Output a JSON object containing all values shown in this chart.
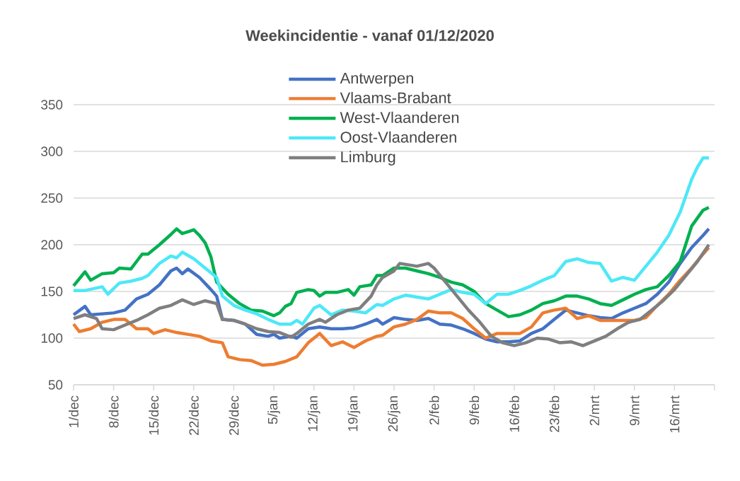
{
  "chart_data": {
    "type": "line",
    "title": "Weekincidentie - vanaf 01/12/2020",
    "xlim": [
      "2020-12-01",
      "2021-03-23"
    ],
    "ylim": [
      50,
      350
    ],
    "yticks": [
      50,
      100,
      150,
      200,
      250,
      300,
      350
    ],
    "xticks": [
      {
        "value": "2020-12-01",
        "label": "1/dec"
      },
      {
        "value": "2020-12-08",
        "label": "8/dec"
      },
      {
        "value": "2020-12-15",
        "label": "15/dec"
      },
      {
        "value": "2020-12-22",
        "label": "22/dec"
      },
      {
        "value": "2020-12-29",
        "label": "29/dec"
      },
      {
        "value": "2021-01-05",
        "label": "5/jan"
      },
      {
        "value": "2021-01-12",
        "label": "12/jan"
      },
      {
        "value": "2021-01-19",
        "label": "19/jan"
      },
      {
        "value": "2021-01-26",
        "label": "26/jan"
      },
      {
        "value": "2021-02-02",
        "label": "2/feb"
      },
      {
        "value": "2021-02-09",
        "label": "9/feb"
      },
      {
        "value": "2021-02-16",
        "label": "16/feb"
      },
      {
        "value": "2021-02-23",
        "label": "23/feb"
      },
      {
        "value": "2021-03-02",
        "label": "2/mrt"
      },
      {
        "value": "2021-03-09",
        "label": "9/mrt"
      },
      {
        "value": "2021-03-16",
        "label": "16/mrt"
      },
      {
        "value": "2021-03-23",
        "label": null
      }
    ],
    "grid": "y",
    "legend": "top",
    "marker": "none",
    "line_style": "solid",
    "series": [
      {
        "name": "Antwerpen",
        "color": "#4472c4",
        "x": [
          "2020-12-01",
          "2020-12-03",
          "2020-12-04",
          "2020-12-06",
          "2020-12-08",
          "2020-12-10",
          "2020-12-12",
          "2020-12-14",
          "2020-12-16",
          "2020-12-18",
          "2020-12-19",
          "2020-12-20",
          "2020-12-21",
          "2020-12-23",
          "2020-12-25",
          "2020-12-26",
          "2020-12-27",
          "2020-12-29",
          "2020-12-31",
          "2021-01-02",
          "2021-01-04",
          "2021-01-05",
          "2021-01-06",
          "2021-01-08",
          "2021-01-09",
          "2021-01-11",
          "2021-01-13",
          "2021-01-15",
          "2021-01-17",
          "2021-01-19",
          "2021-01-21",
          "2021-01-23",
          "2021-01-24",
          "2021-01-26",
          "2021-01-28",
          "2021-01-30",
          "2021-02-01",
          "2021-02-03",
          "2021-02-05",
          "2021-02-07",
          "2021-02-09",
          "2021-02-11",
          "2021-02-13",
          "2021-02-15",
          "2021-02-17",
          "2021-02-19",
          "2021-02-21",
          "2021-02-23",
          "2021-02-25",
          "2021-02-27",
          "2021-03-01",
          "2021-03-03",
          "2021-03-05",
          "2021-03-07",
          "2021-03-09",
          "2021-03-11",
          "2021-03-13",
          "2021-03-15",
          "2021-03-17",
          "2021-03-19",
          "2021-03-21",
          "2021-03-22"
        ],
        "values": [
          125,
          134,
          125,
          126,
          127,
          130,
          142,
          147,
          157,
          172,
          175,
          169,
          174,
          165,
          152,
          145,
          120,
          119,
          115,
          104,
          102,
          104,
          100,
          102,
          100,
          110,
          112,
          110,
          110,
          111,
          115,
          120,
          115,
          122,
          120,
          119,
          121,
          115,
          114,
          110,
          105,
          99,
          96,
          96,
          97,
          105,
          110,
          120,
          130,
          127,
          124,
          122,
          121,
          127,
          132,
          137,
          147,
          160,
          180,
          197,
          210,
          217
        ]
      },
      {
        "name": "Vlaams-Brabant",
        "color": "#ed7d31",
        "x": [
          "2020-12-01",
          "2020-12-02",
          "2020-12-04",
          "2020-12-06",
          "2020-12-08",
          "2020-12-10",
          "2020-12-12",
          "2020-12-14",
          "2020-12-15",
          "2020-12-17",
          "2020-12-19",
          "2020-12-21",
          "2020-12-23",
          "2020-12-25",
          "2020-12-27",
          "2020-12-28",
          "2020-12-30",
          "2021-01-01",
          "2021-01-03",
          "2021-01-05",
          "2021-01-07",
          "2021-01-09",
          "2021-01-11",
          "2021-01-13",
          "2021-01-15",
          "2021-01-17",
          "2021-01-19",
          "2021-01-21",
          "2021-01-23",
          "2021-01-24",
          "2021-01-26",
          "2021-01-28",
          "2021-01-30",
          "2021-02-01",
          "2021-02-03",
          "2021-02-05",
          "2021-02-07",
          "2021-02-09",
          "2021-02-11",
          "2021-02-13",
          "2021-02-15",
          "2021-02-17",
          "2021-02-19",
          "2021-02-21",
          "2021-02-23",
          "2021-02-25",
          "2021-02-27",
          "2021-03-01",
          "2021-03-03",
          "2021-03-05",
          "2021-03-07",
          "2021-03-09",
          "2021-03-11",
          "2021-03-13",
          "2021-03-15",
          "2021-03-17",
          "2021-03-19",
          "2021-03-21",
          "2021-03-22"
        ],
        "values": [
          115,
          107,
          110,
          117,
          120,
          120,
          110,
          110,
          105,
          109,
          106,
          104,
          102,
          97,
          95,
          80,
          77,
          76,
          71,
          72,
          75,
          80,
          95,
          105,
          92,
          96,
          90,
          97,
          102,
          103,
          112,
          115,
          120,
          129,
          127,
          127,
          121,
          110,
          100,
          105,
          105,
          105,
          112,
          127,
          130,
          132,
          121,
          124,
          119,
          119,
          119,
          119,
          122,
          135,
          147,
          162,
          175,
          190,
          197
        ]
      },
      {
        "name": "West-Vlaanderen",
        "color": "#00b050",
        "x": [
          "2020-12-01",
          "2020-12-03",
          "2020-12-04",
          "2020-12-06",
          "2020-12-08",
          "2020-12-09",
          "2020-12-11",
          "2020-12-12",
          "2020-12-13",
          "2020-12-14",
          "2020-12-16",
          "2020-12-18",
          "2020-12-19",
          "2020-12-20",
          "2020-12-21",
          "2020-12-22",
          "2020-12-23",
          "2020-12-24",
          "2020-12-25",
          "2020-12-26",
          "2020-12-28",
          "2020-12-30",
          "2021-01-01",
          "2021-01-03",
          "2021-01-05",
          "2021-01-06",
          "2021-01-07",
          "2021-01-08",
          "2021-01-09",
          "2021-01-11",
          "2021-01-12",
          "2021-01-13",
          "2021-01-14",
          "2021-01-16",
          "2021-01-18",
          "2021-01-19",
          "2021-01-20",
          "2021-01-22",
          "2021-01-23",
          "2021-01-24",
          "2021-01-26",
          "2021-01-28",
          "2021-01-30",
          "2021-02-01",
          "2021-02-03",
          "2021-02-05",
          "2021-02-07",
          "2021-02-09",
          "2021-02-11",
          "2021-02-13",
          "2021-02-15",
          "2021-02-17",
          "2021-02-19",
          "2021-02-21",
          "2021-02-23",
          "2021-02-25",
          "2021-02-27",
          "2021-03-01",
          "2021-03-03",
          "2021-03-05",
          "2021-03-07",
          "2021-03-09",
          "2021-03-11",
          "2021-03-13",
          "2021-03-15",
          "2021-03-17",
          "2021-03-19",
          "2021-03-21",
          "2021-03-22"
        ],
        "values": [
          156,
          171,
          162,
          169,
          170,
          175,
          174,
          182,
          190,
          190,
          200,
          211,
          217,
          212,
          214,
          216,
          210,
          202,
          187,
          160,
          147,
          137,
          130,
          129,
          124,
          127,
          134,
          137,
          149,
          152,
          151,
          145,
          149,
          149,
          152,
          146,
          155,
          157,
          167,
          167,
          175,
          175,
          172,
          169,
          165,
          160,
          157,
          150,
          137,
          130,
          123,
          125,
          130,
          137,
          140,
          145,
          145,
          142,
          137,
          135,
          141,
          147,
          152,
          155,
          167,
          182,
          220,
          237,
          240
        ]
      },
      {
        "name": "Oost-Vlaanderen",
        "color": "#4de8f7",
        "x": [
          "2020-12-01",
          "2020-12-03",
          "2020-12-06",
          "2020-12-07",
          "2020-12-09",
          "2020-12-11",
          "2020-12-13",
          "2020-12-14",
          "2020-12-16",
          "2020-12-18",
          "2020-12-19",
          "2020-12-20",
          "2020-12-22",
          "2020-12-24",
          "2020-12-26",
          "2020-12-27",
          "2020-12-29",
          "2020-12-31",
          "2021-01-02",
          "2021-01-04",
          "2021-01-06",
          "2021-01-08",
          "2021-01-09",
          "2021-01-10",
          "2021-01-12",
          "2021-01-13",
          "2021-01-15",
          "2021-01-17",
          "2021-01-19",
          "2021-01-21",
          "2021-01-23",
          "2021-01-24",
          "2021-01-26",
          "2021-01-28",
          "2021-01-30",
          "2021-02-01",
          "2021-02-03",
          "2021-02-05",
          "2021-02-07",
          "2021-02-09",
          "2021-02-11",
          "2021-02-13",
          "2021-02-15",
          "2021-02-17",
          "2021-02-19",
          "2021-02-21",
          "2021-02-23",
          "2021-02-25",
          "2021-02-27",
          "2021-03-01",
          "2021-03-03",
          "2021-03-05",
          "2021-03-07",
          "2021-03-09",
          "2021-03-11",
          "2021-03-13",
          "2021-03-15",
          "2021-03-17",
          "2021-03-19",
          "2021-03-20",
          "2021-03-21",
          "2021-03-22"
        ],
        "values": [
          151,
          151,
          155,
          147,
          159,
          161,
          164,
          167,
          180,
          188,
          186,
          192,
          185,
          175,
          165,
          145,
          135,
          130,
          126,
          120,
          115,
          115,
          119,
          115,
          132,
          135,
          125,
          130,
          129,
          127,
          136,
          135,
          142,
          146,
          144,
          142,
          147,
          152,
          149,
          147,
          137,
          147,
          147,
          151,
          156,
          162,
          167,
          182,
          185,
          181,
          180,
          161,
          165,
          162,
          177,
          192,
          210,
          235,
          270,
          283,
          293,
          293
        ]
      },
      {
        "name": "Limburg",
        "color": "#7f7f7f",
        "x": [
          "2020-12-01",
          "2020-12-03",
          "2020-12-05",
          "2020-12-06",
          "2020-12-08",
          "2020-12-10",
          "2020-12-12",
          "2020-12-14",
          "2020-12-16",
          "2020-12-18",
          "2020-12-20",
          "2020-12-22",
          "2020-12-24",
          "2020-12-26",
          "2020-12-27",
          "2020-12-29",
          "2020-12-31",
          "2021-01-02",
          "2021-01-04",
          "2021-01-06",
          "2021-01-08",
          "2021-01-09",
          "2021-01-11",
          "2021-01-13",
          "2021-01-14",
          "2021-01-16",
          "2021-01-18",
          "2021-01-20",
          "2021-01-22",
          "2021-01-23",
          "2021-01-24",
          "2021-01-26",
          "2021-01-27",
          "2021-01-30",
          "2021-02-01",
          "2021-02-02",
          "2021-02-04",
          "2021-02-06",
          "2021-02-08",
          "2021-02-10",
          "2021-02-12",
          "2021-02-14",
          "2021-02-16",
          "2021-02-18",
          "2021-02-20",
          "2021-02-22",
          "2021-02-24",
          "2021-02-26",
          "2021-02-28",
          "2021-03-02",
          "2021-03-04",
          "2021-03-06",
          "2021-03-08",
          "2021-03-10",
          "2021-03-12",
          "2021-03-14",
          "2021-03-16",
          "2021-03-18",
          "2021-03-20",
          "2021-03-22"
        ],
        "values": [
          121,
          125,
          121,
          110,
          109,
          114,
          119,
          125,
          132,
          135,
          141,
          136,
          140,
          137,
          120,
          119,
          115,
          110,
          107,
          106,
          101,
          105,
          115,
          120,
          117,
          125,
          130,
          132,
          145,
          157,
          165,
          172,
          180,
          177,
          180,
          175,
          160,
          145,
          130,
          117,
          102,
          95,
          92,
          95,
          100,
          99,
          95,
          96,
          92,
          97,
          102,
          110,
          117,
          120,
          130,
          140,
          152,
          167,
          182,
          200
        ]
      }
    ]
  }
}
